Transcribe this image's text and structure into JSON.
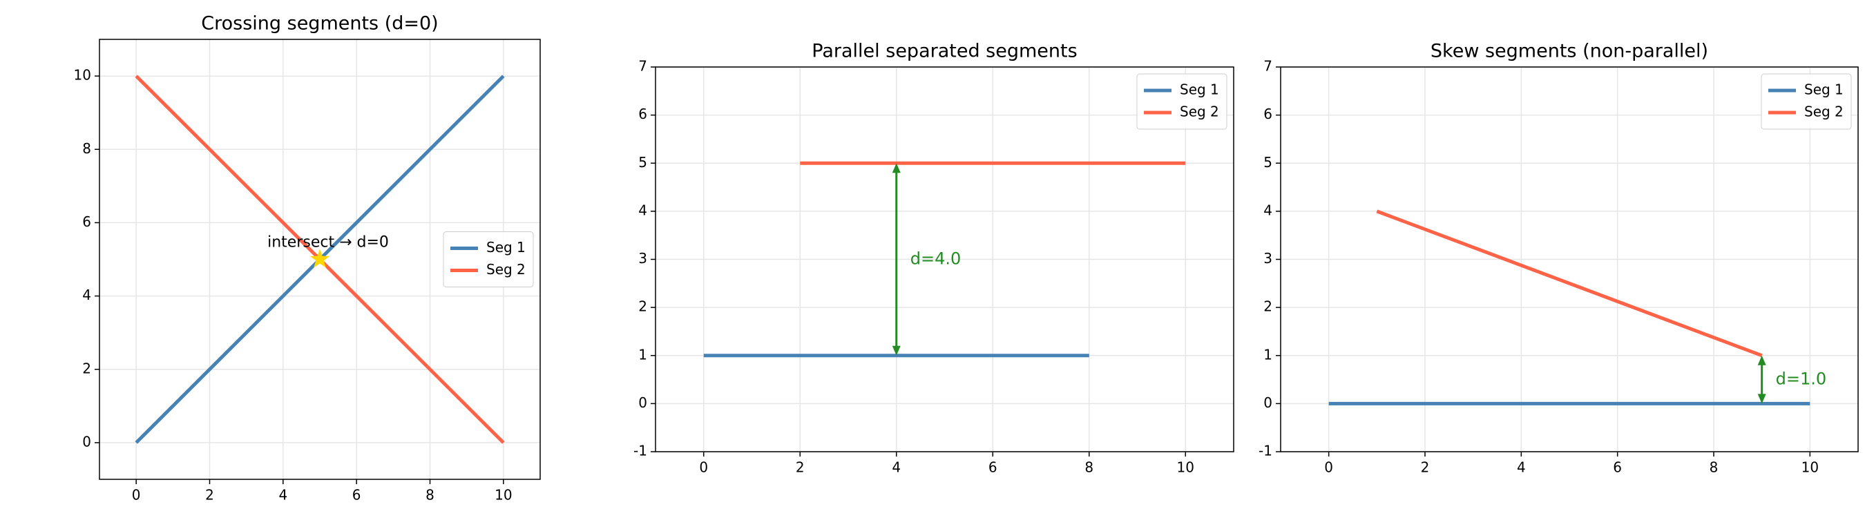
{
  "chart_data": [
    {
      "type": "line",
      "title": "Crossing segments (d=0)",
      "xlim": [
        -1,
        11
      ],
      "ylim": [
        -1,
        11
      ],
      "xticks": [
        0,
        2,
        4,
        6,
        8,
        10
      ],
      "yticks": [
        0,
        2,
        4,
        6,
        8,
        10
      ],
      "grid": true,
      "legend": "center right",
      "series": [
        {
          "name": "Seg 1",
          "color": "#4682b4",
          "x": [
            0,
            10
          ],
          "values": [
            0,
            10
          ]
        },
        {
          "name": "Seg 2",
          "color": "#ff6347",
          "x": [
            0,
            10
          ],
          "values": [
            10,
            0
          ]
        }
      ],
      "marker": {
        "x": 5,
        "y": 5,
        "color": "#ffd700"
      },
      "annotation": "intersect → d=0"
    },
    {
      "type": "line",
      "title": "Parallel separated segments",
      "xlim": [
        -1,
        11
      ],
      "ylim": [
        -1,
        7
      ],
      "xticks": [
        0,
        2,
        4,
        6,
        8,
        10
      ],
      "yticks": [
        -1,
        0,
        1,
        2,
        3,
        4,
        5,
        6,
        7
      ],
      "grid": true,
      "legend": "upper right",
      "series": [
        {
          "name": "Seg 1",
          "color": "#4682b4",
          "x": [
            0,
            8
          ],
          "values": [
            1,
            1
          ]
        },
        {
          "name": "Seg 2",
          "color": "#ff6347",
          "x": [
            2,
            10
          ],
          "values": [
            5,
            5
          ]
        }
      ],
      "arrow": {
        "x": 4,
        "y": [
          1,
          5
        ],
        "color": "#228b22"
      },
      "annotation": "d=4.0"
    },
    {
      "type": "line",
      "title": "Skew segments (non-parallel)",
      "xlim": [
        -1,
        11
      ],
      "ylim": [
        -1,
        7
      ],
      "xticks": [
        0,
        2,
        4,
        6,
        8,
        10
      ],
      "yticks": [
        -1,
        0,
        1,
        2,
        3,
        4,
        5,
        6,
        7
      ],
      "grid": true,
      "legend": "upper right",
      "series": [
        {
          "name": "Seg 1",
          "color": "#4682b4",
          "x": [
            0,
            10
          ],
          "values": [
            0,
            0
          ]
        },
        {
          "name": "Seg 2",
          "color": "#ff6347",
          "x": [
            1,
            9
          ],
          "values": [
            4,
            1
          ]
        }
      ],
      "arrow": {
        "x": 9,
        "y": [
          0,
          1
        ],
        "color": "#228b22"
      },
      "annotation": "d=1.0"
    }
  ]
}
